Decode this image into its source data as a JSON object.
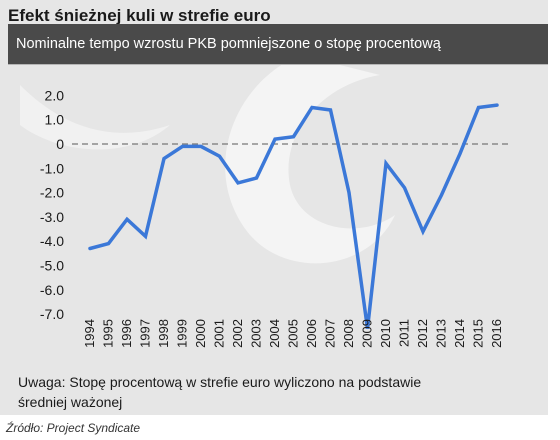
{
  "header": {
    "title": "Efekt śnieżnej kuli w strefie euro",
    "subtitle": "Nominalne tempo wzrostu PKB pomniejszone o stopę procentową"
  },
  "footer": {
    "note": "Uwaga: Stopę procentową w strefie euro wyliczono na podstawie średniej ważonej",
    "source": "Źródło: Project Syndicate"
  },
  "colors": {
    "line": "#3b78d8",
    "panel": "#e6e6e6",
    "subtitle_bar": "#4a4a4a",
    "zero_line": "#777777"
  },
  "chart_data": {
    "type": "line",
    "title": "Efekt śnieżnej kuli w strefie euro",
    "subtitle": "Nominalne tempo wzrostu PKB pomniejszone o stopę procentową",
    "xlabel": "",
    "ylabel": "",
    "ylim": [
      -7.8,
      2.2
    ],
    "grid": false,
    "reference_line": 0,
    "y_ticks": [
      {
        "value": 2.0,
        "label": "2.0"
      },
      {
        "value": 1.0,
        "label": "1.0"
      },
      {
        "value": 0,
        "label": "0"
      },
      {
        "value": -1.0,
        "label": "-1.0"
      },
      {
        "value": -2.0,
        "label": "-2.0"
      },
      {
        "value": -3.0,
        "label": "-3.0"
      },
      {
        "value": -4.0,
        "label": "-4.0"
      },
      {
        "value": -5.0,
        "label": "-5.0"
      },
      {
        "value": -6.0,
        "label": "-6.0"
      },
      {
        "value": -7.0,
        "label": "-7.0"
      }
    ],
    "x": [
      "1994",
      "1995",
      "1996",
      "1997",
      "1998",
      "1999",
      "2000",
      "2001",
      "2002",
      "2003",
      "2004",
      "2005",
      "2006",
      "2007",
      "2008",
      "2009",
      "2010",
      "2011",
      "2012",
      "2013",
      "2014",
      "2015",
      "2016"
    ],
    "series": [
      {
        "values": [
          -4.3,
          -4.1,
          -3.1,
          -3.8,
          -0.6,
          -0.1,
          -0.1,
          -0.5,
          -1.6,
          -1.4,
          0.2,
          0.3,
          1.5,
          1.4,
          -2.0,
          -7.6,
          -0.8,
          -1.8,
          -3.6,
          -2.1,
          -0.4,
          1.5,
          1.6
        ]
      }
    ]
  }
}
